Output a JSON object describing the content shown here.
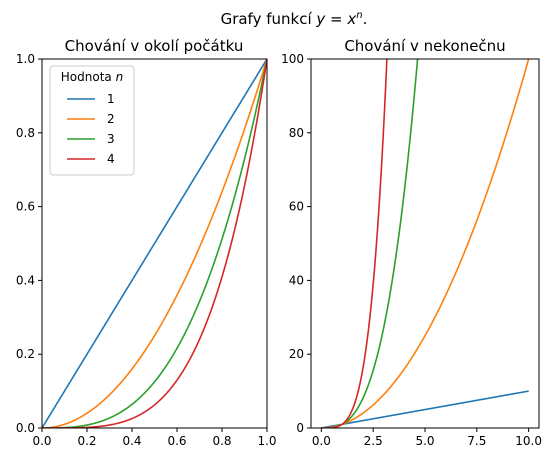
{
  "suptitle": "Grafy funkcí y = xⁿ.",
  "legend": {
    "title": "Hodnota n",
    "entries": [
      "1",
      "2",
      "3",
      "4"
    ]
  },
  "colors": {
    "n1": "#1f77b4",
    "n2": "#ff7f0e",
    "n3": "#2ca02c",
    "n4": "#d62728"
  },
  "chart_data": [
    {
      "type": "line",
      "title": "Chování v okolí počátku",
      "function": "y = x^n",
      "x_range": [
        0,
        1
      ],
      "xlim": [
        0,
        1
      ],
      "ylim": [
        0,
        1
      ],
      "xticks": [
        0.0,
        0.2,
        0.4,
        0.6,
        0.8,
        1.0
      ],
      "xtick_labels": [
        "0.0",
        "0.2",
        "0.4",
        "0.6",
        "0.8",
        "1.0"
      ],
      "yticks": [
        0.0,
        0.2,
        0.4,
        0.6,
        0.8,
        1.0
      ],
      "ytick_labels": [
        "0.0",
        "0.2",
        "0.4",
        "0.6",
        "0.8",
        "1.0"
      ],
      "series": [
        {
          "name": "1",
          "n": 1
        },
        {
          "name": "2",
          "n": 2
        },
        {
          "name": "3",
          "n": 3
        },
        {
          "name": "4",
          "n": 4
        }
      ],
      "legend_position": "top-left",
      "grid": false
    },
    {
      "type": "line",
      "title": "Chování v nekonečnu",
      "function": "y = x^n",
      "x_range": [
        0,
        10
      ],
      "xlim": [
        -0.5,
        10.5
      ],
      "ylim": [
        0,
        100
      ],
      "xticks": [
        0.0,
        2.5,
        5.0,
        7.5,
        10.0
      ],
      "xtick_labels": [
        "0.0",
        "2.5",
        "5.0",
        "7.5",
        "10.0"
      ],
      "yticks": [
        0,
        20,
        40,
        60,
        80,
        100
      ],
      "ytick_labels": [
        "0",
        "20",
        "40",
        "60",
        "80",
        "100"
      ],
      "series": [
        {
          "name": "1",
          "n": 1
        },
        {
          "name": "2",
          "n": 2
        },
        {
          "name": "3",
          "n": 3
        },
        {
          "name": "4",
          "n": 4
        }
      ],
      "grid": false
    }
  ]
}
